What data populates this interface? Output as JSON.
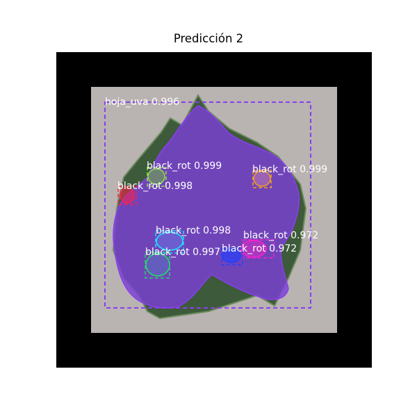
{
  "figure": {
    "title": "Predicción 2"
  },
  "colors": {
    "frame": "#000000",
    "leaf_mask": "#7b3fd6",
    "leaf_box": "#8a3ef0",
    "background": "#b9b3b2"
  },
  "detections": [
    {
      "label": "hoja_uva 0.996",
      "color": "#8a3ef0"
    },
    {
      "label": "black_rot 0.999",
      "color": "#8ee04a"
    },
    {
      "label": "black_rot 0.998",
      "color": "#ff1f4a"
    },
    {
      "label": "black_rot 0.999",
      "color": "#f0a020"
    },
    {
      "label": "black_rot 0.998",
      "color": "#22d8ff"
    },
    {
      "label": "black_rot 0.997",
      "color": "#2ad070"
    },
    {
      "label": "black_rot 0.972",
      "color": "#ff1fd0"
    },
    {
      "label": "black_rot 0.972",
      "color": "#2040ff"
    }
  ]
}
